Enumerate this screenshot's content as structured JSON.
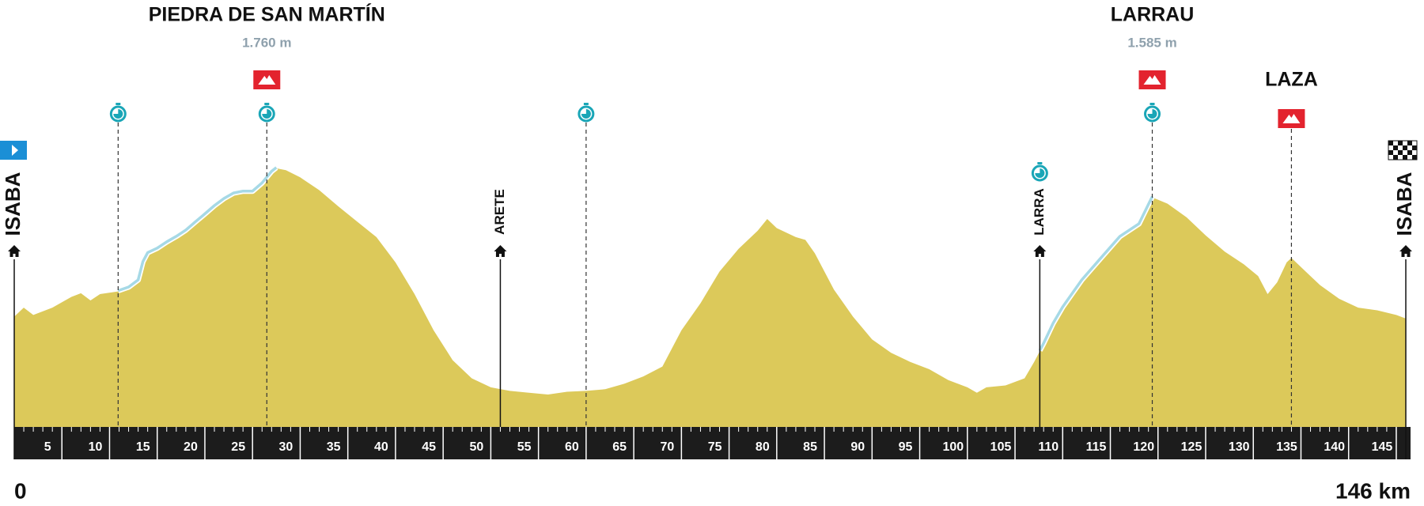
{
  "chart_data": {
    "type": "area",
    "color": "#dcc95a",
    "x": [
      0,
      1,
      2,
      4,
      6,
      7,
      8,
      9,
      10.9,
      12,
      13,
      13.5,
      14,
      15,
      16,
      17,
      18,
      19,
      20,
      21,
      22,
      23,
      24,
      25,
      26,
      27,
      27.5,
      28.5,
      30,
      32,
      34,
      36,
      38,
      40,
      42,
      44,
      46,
      48,
      50,
      52,
      54,
      56,
      58,
      60,
      62,
      64,
      66,
      68,
      69,
      70,
      72,
      74,
      76,
      78,
      79,
      80,
      82,
      83,
      84,
      86,
      88,
      90,
      92,
      94,
      96,
      98,
      100,
      101,
      102,
      104,
      106,
      107,
      108,
      109,
      110,
      112,
      114,
      116,
      118,
      119.4,
      121,
      123,
      125,
      127,
      129,
      130.5,
      131.5,
      132.5,
      133.5,
      134,
      135.5,
      137,
      139,
      141,
      143,
      145,
      146
    ],
    "values": [
      886,
      939,
      896,
      939,
      1002,
      1023,
      981,
      1018,
      1034,
      1055,
      1097,
      1204,
      1257,
      1283,
      1320,
      1352,
      1389,
      1437,
      1484,
      1532,
      1574,
      1606,
      1617,
      1617,
      1665,
      1733,
      1755,
      1744,
      1702,
      1627,
      1532,
      1442,
      1352,
      1204,
      1018,
      806,
      631,
      525,
      472,
      451,
      440,
      430,
      446,
      451,
      461,
      493,
      536,
      594,
      700,
      806,
      965,
      1150,
      1283,
      1389,
      1458,
      1405,
      1352,
      1336,
      1257,
      1045,
      886,
      753,
      674,
      621,
      578,
      514,
      472,
      440,
      472,
      483,
      525,
      620,
      726,
      843,
      939,
      1097,
      1225,
      1352,
      1426,
      1585,
      1548,
      1468,
      1362,
      1267,
      1193,
      1124,
      1018,
      1087,
      1204,
      1230,
      1150,
      1071,
      991,
      939,
      923,
      896,
      875
    ],
    "xlim": [
      0,
      146
    ],
    "ylim": [
      240,
      2000
    ],
    "xticks": [
      5,
      10,
      15,
      20,
      25,
      30,
      35,
      40,
      45,
      50,
      55,
      60,
      65,
      70,
      75,
      80,
      85,
      90,
      95,
      100,
      105,
      110,
      115,
      120,
      125,
      130,
      135,
      140,
      145
    ],
    "minor_xtick_step": 1,
    "end_label": "146 km",
    "climb_segments": [
      [
        10.9,
        27.5
      ],
      [
        107.6,
        119.4
      ]
    ],
    "climbs": [
      {
        "name": "PIEDRA DE SAN MARTÍN",
        "altitude": {
          "value": 1760,
          "label": "1.760 m"
        },
        "km": 26.5
      },
      {
        "name": "LARRAU",
        "altitude": {
          "value": 1585,
          "label": "1.585 m"
        },
        "km": 119.4
      },
      {
        "name": "LAZA",
        "km": 134
      }
    ],
    "checkpoints": [
      10.9,
      26.5,
      60,
      107.6,
      119.4
    ],
    "towns": [
      {
        "name": "ISABA",
        "km": 0
      },
      {
        "name": "ARETE",
        "km": 51
      },
      {
        "name": "LARRA",
        "km": 107.6
      },
      {
        "name": "ISABA",
        "km": 146
      }
    ]
  }
}
